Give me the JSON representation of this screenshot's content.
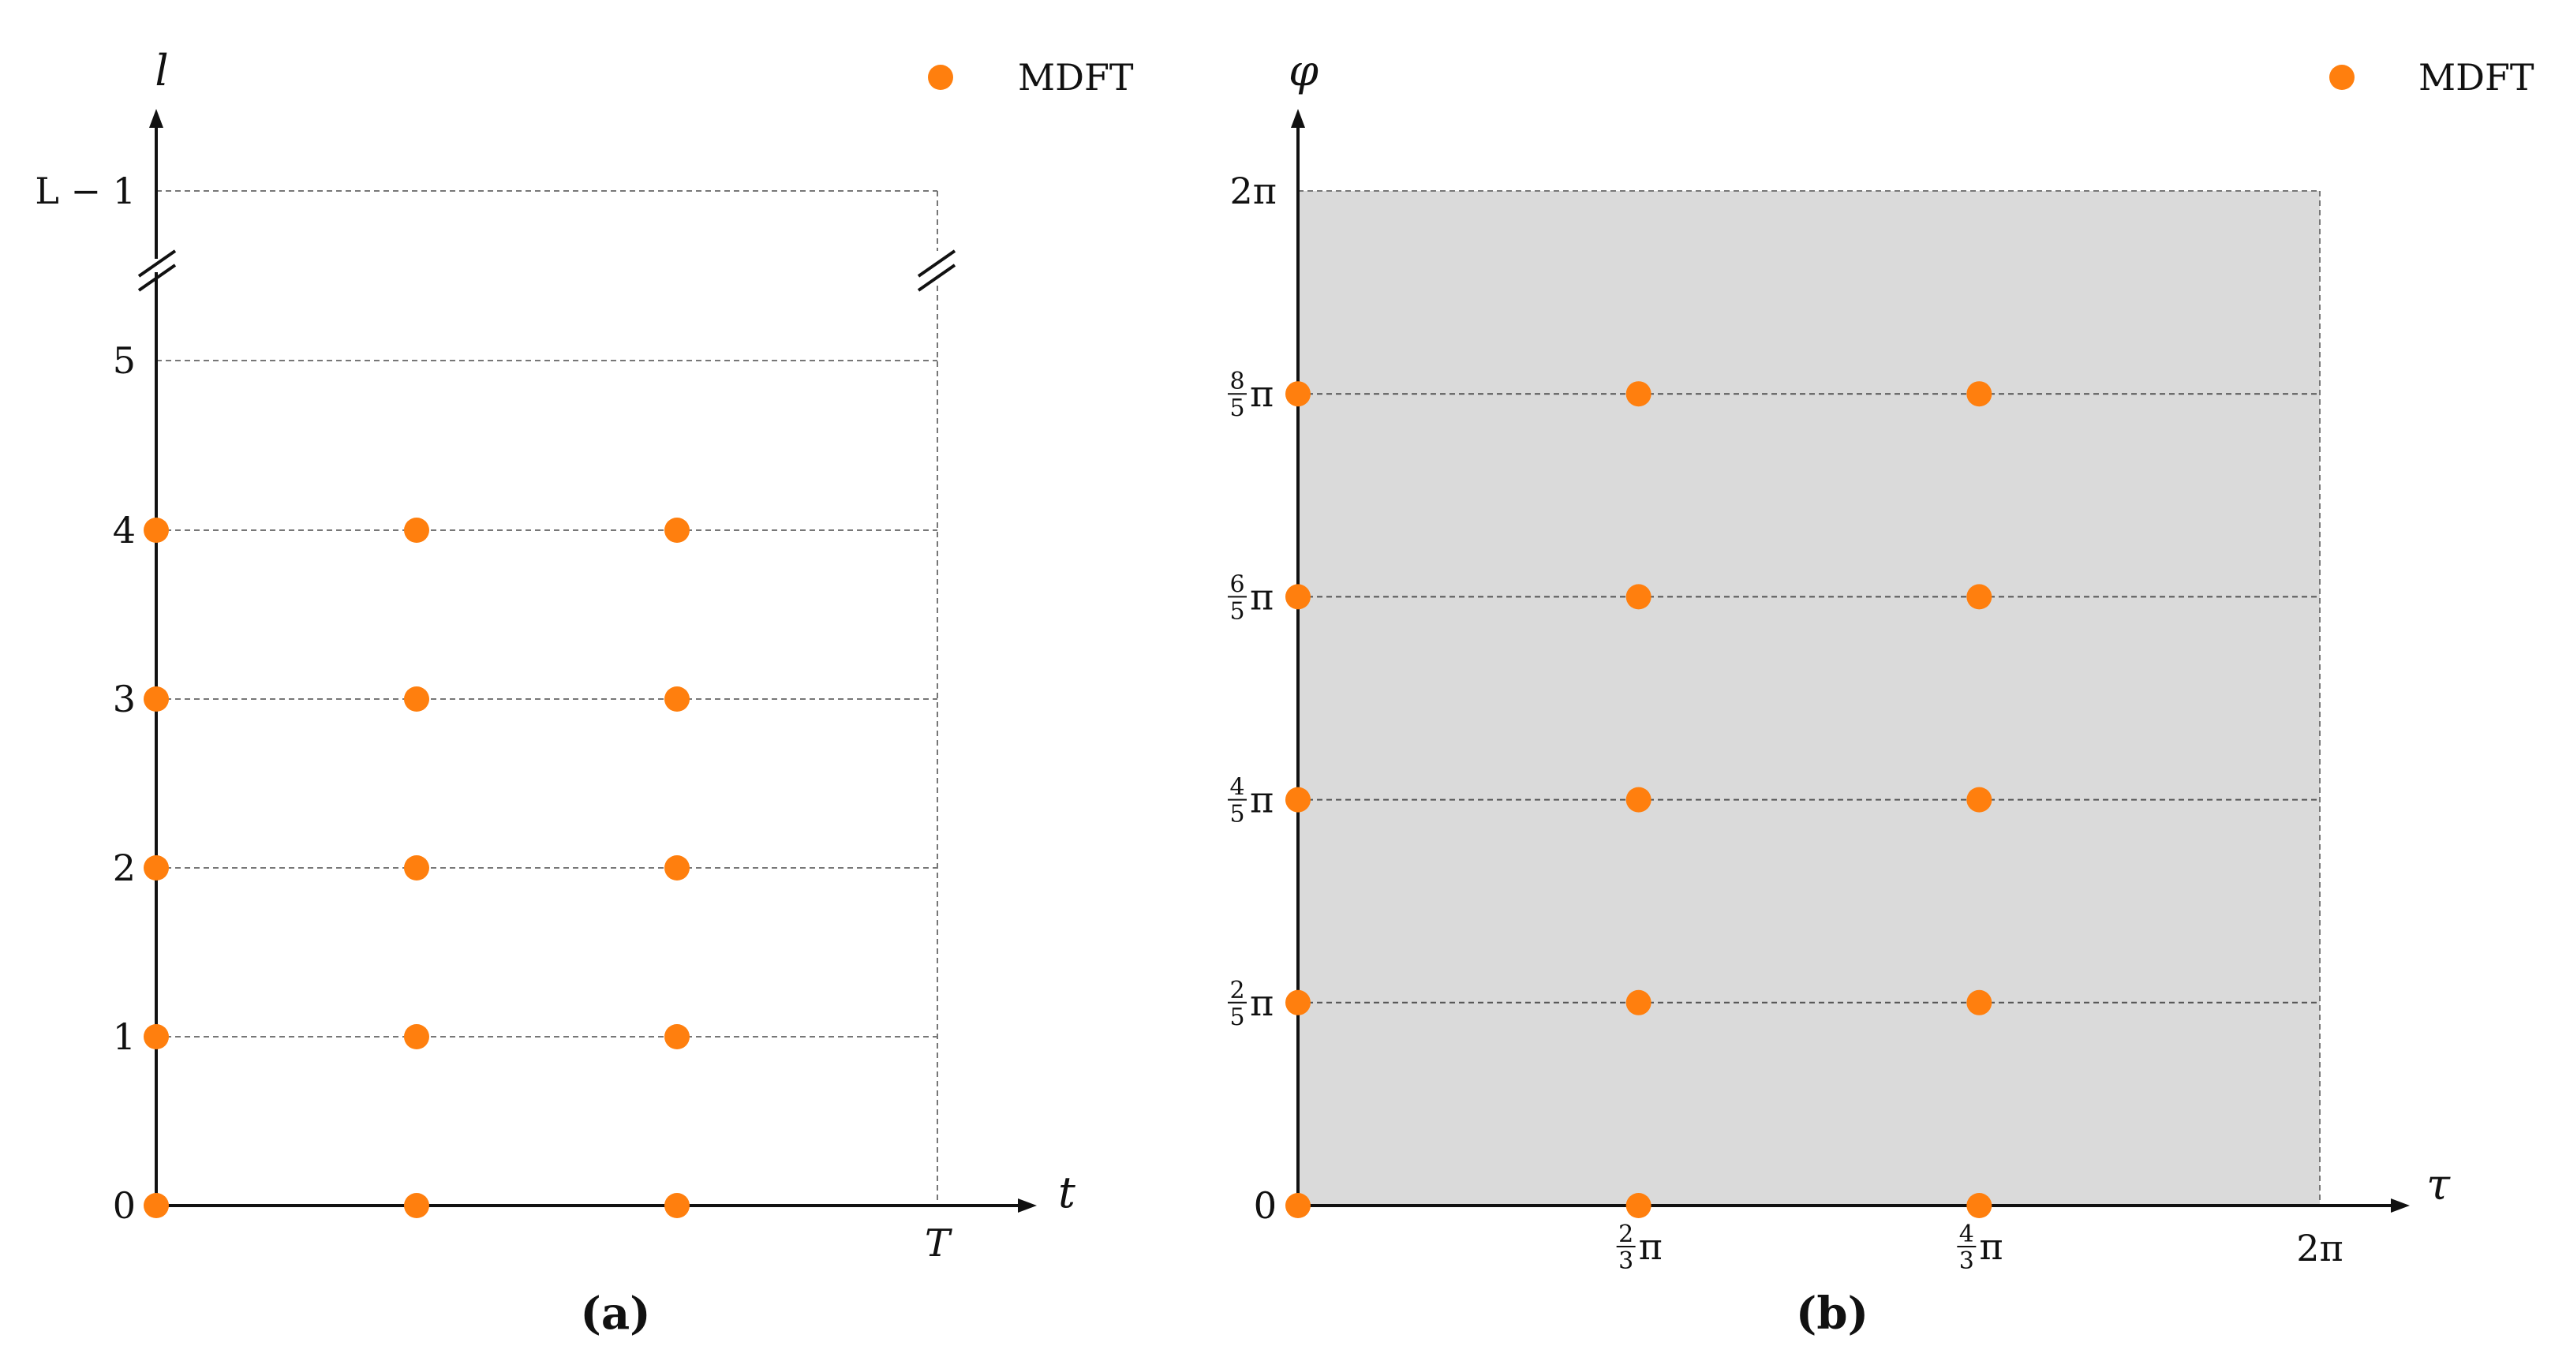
{
  "chart_data": [
    {
      "type": "scatter",
      "panel_label": "(a)",
      "xlabel": "t",
      "ylabel": "l",
      "x_tick_labels": [
        "T"
      ],
      "y_tick_labels": [
        "0",
        "1",
        "2",
        "3",
        "4",
        "5",
        "L − 1"
      ],
      "series": [
        {
          "name": "MDFT",
          "color": "#ff7f0e",
          "points": [
            [
              0,
              0
            ],
            [
              1,
              0
            ],
            [
              2,
              0
            ],
            [
              0,
              1
            ],
            [
              1,
              1
            ],
            [
              2,
              1
            ],
            [
              0,
              2
            ],
            [
              1,
              2
            ],
            [
              2,
              2
            ],
            [
              0,
              3
            ],
            [
              1,
              3
            ],
            [
              2,
              3
            ],
            [
              0,
              4
            ],
            [
              1,
              4
            ],
            [
              2,
              4
            ]
          ]
        }
      ],
      "x_range": [
        0,
        3
      ],
      "y_range": [
        0,
        6
      ],
      "y_axis_break": true,
      "grid": "horizontal dashed",
      "legend": "top-right"
    },
    {
      "type": "scatter",
      "panel_label": "(b)",
      "xlabel": "τ",
      "ylabel": "φ",
      "x_ticks": [
        {
          "v": 0,
          "text": "0"
        },
        {
          "v": 2.0944,
          "num": "2",
          "den": "3",
          "tail": "π"
        },
        {
          "v": 4.1888,
          "num": "4",
          "den": "3",
          "tail": "π"
        },
        {
          "v": 6.2832,
          "text": "2π"
        }
      ],
      "y_ticks": [
        {
          "v": 0,
          "text": "0"
        },
        {
          "v": 1.2566,
          "num": "2",
          "den": "5",
          "tail": "π"
        },
        {
          "v": 2.5133,
          "num": "4",
          "den": "5",
          "tail": "π"
        },
        {
          "v": 3.7699,
          "num": "6",
          "den": "5",
          "tail": "π"
        },
        {
          "v": 5.0265,
          "num": "8",
          "den": "5",
          "tail": "π"
        },
        {
          "v": 6.2832,
          "text": "2π"
        }
      ],
      "series": [
        {
          "name": "MDFT",
          "color": "#ff7f0e",
          "points": [
            [
              0,
              0
            ],
            [
              2.0944,
              0
            ],
            [
              4.1888,
              0
            ],
            [
              0,
              1.2566
            ],
            [
              2.0944,
              1.2566
            ],
            [
              4.1888,
              1.2566
            ],
            [
              0,
              2.5133
            ],
            [
              2.0944,
              2.5133
            ],
            [
              4.1888,
              2.5133
            ],
            [
              0,
              3.7699
            ],
            [
              2.0944,
              3.7699
            ],
            [
              4.1888,
              3.7699
            ],
            [
              0,
              5.0265
            ],
            [
              2.0944,
              5.0265
            ],
            [
              4.1888,
              5.0265
            ]
          ]
        }
      ],
      "x_range": [
        0,
        6.2832
      ],
      "y_range": [
        0,
        6.2832
      ],
      "shaded_region": {
        "x": [
          0,
          6.2832
        ],
        "y": [
          0,
          6.2832
        ],
        "color": "#dadada"
      },
      "grid": "horizontal dashed",
      "legend": "top-right"
    }
  ]
}
